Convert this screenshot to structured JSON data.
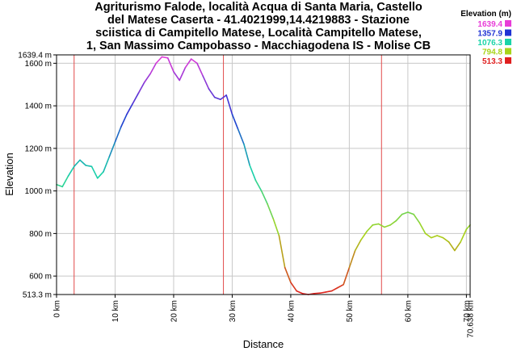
{
  "title_lines": [
    "Agriturismo Falode, località Acqua di Santa Maria, Castello",
    "del Matese Caserta - 41.4021999,14.4219883 - Stazione",
    "sciistica di Campitello Matese, Località Campitello Matese,",
    "1, San Massimo Campobasso - Macchiagodena IS - Molise CB"
  ],
  "chart_data": {
    "type": "line",
    "xlabel": "Distance",
    "ylabel": "Elevation",
    "xlim": [
      0,
      70.638
    ],
    "ylim": [
      513.3,
      1639.4
    ],
    "x_ticks": [
      {
        "value": 0,
        "label": "0 km"
      },
      {
        "value": 10,
        "label": "10 km"
      },
      {
        "value": 20,
        "label": "20 km"
      },
      {
        "value": 30,
        "label": "30 km"
      },
      {
        "value": 40,
        "label": "40 km"
      },
      {
        "value": 50,
        "label": "50 km"
      },
      {
        "value": 60,
        "label": "60 km"
      },
      {
        "value": 70,
        "label": "70 km"
      },
      {
        "value": 70.638,
        "label": "70.638 km"
      }
    ],
    "y_ticks": [
      {
        "value": 513.3,
        "label": "513.3 m"
      },
      {
        "value": 600,
        "label": "600 m"
      },
      {
        "value": 800,
        "label": "800 m"
      },
      {
        "value": 1000,
        "label": "1000 m"
      },
      {
        "value": 1200,
        "label": "1200 m"
      },
      {
        "value": 1400,
        "label": "1400 m"
      },
      {
        "value": 1600,
        "label": "1600 m"
      },
      {
        "value": 1639.4,
        "label": "1639.4 m"
      }
    ],
    "grid": true,
    "markers_x": [
      3.0,
      28.5,
      55.5
    ],
    "series": [
      {
        "x": [
          0,
          1,
          2,
          3,
          4,
          5,
          6,
          7,
          8,
          9,
          10,
          11,
          12,
          13,
          14,
          15,
          16,
          17,
          18,
          19,
          20,
          21,
          22,
          23,
          24,
          25,
          26,
          27,
          28,
          29,
          30,
          31,
          32,
          33,
          34,
          35,
          36,
          37,
          38,
          39,
          40,
          41,
          42,
          43,
          44,
          45,
          46,
          47,
          48,
          49,
          50,
          51,
          52,
          53,
          54,
          55,
          56,
          57,
          58,
          59,
          60,
          61,
          62,
          63,
          64,
          65,
          66,
          67,
          68,
          69,
          70,
          70.638
        ],
        "y": [
          1030,
          1020,
          1070,
          1115,
          1145,
          1120,
          1115,
          1060,
          1090,
          1160,
          1230,
          1300,
          1360,
          1410,
          1460,
          1510,
          1550,
          1600,
          1630,
          1625,
          1560,
          1520,
          1580,
          1620,
          1600,
          1540,
          1480,
          1440,
          1430,
          1450,
          1360,
          1290,
          1220,
          1120,
          1050,
          1000,
          940,
          870,
          790,
          640,
          570,
          530,
          518,
          513.3,
          518,
          520,
          525,
          530,
          545,
          560,
          640,
          720,
          770,
          810,
          840,
          845,
          830,
          840,
          860,
          890,
          900,
          890,
          850,
          800,
          780,
          790,
          780,
          760,
          720,
          760,
          820,
          840
        ]
      }
    ],
    "legend": {
      "title": "Elevation (m)",
      "placement": "top-right",
      "items": [
        {
          "label": "1639.4",
          "color": "#e83cd8"
        },
        {
          "label": "1357.9",
          "color": "#2033d4"
        },
        {
          "label": "1076.3",
          "color": "#19d4a8"
        },
        {
          "label": "794.8",
          "color": "#a8d41a"
        },
        {
          "label": "513.3",
          "color": "#e01f1f"
        }
      ]
    }
  }
}
